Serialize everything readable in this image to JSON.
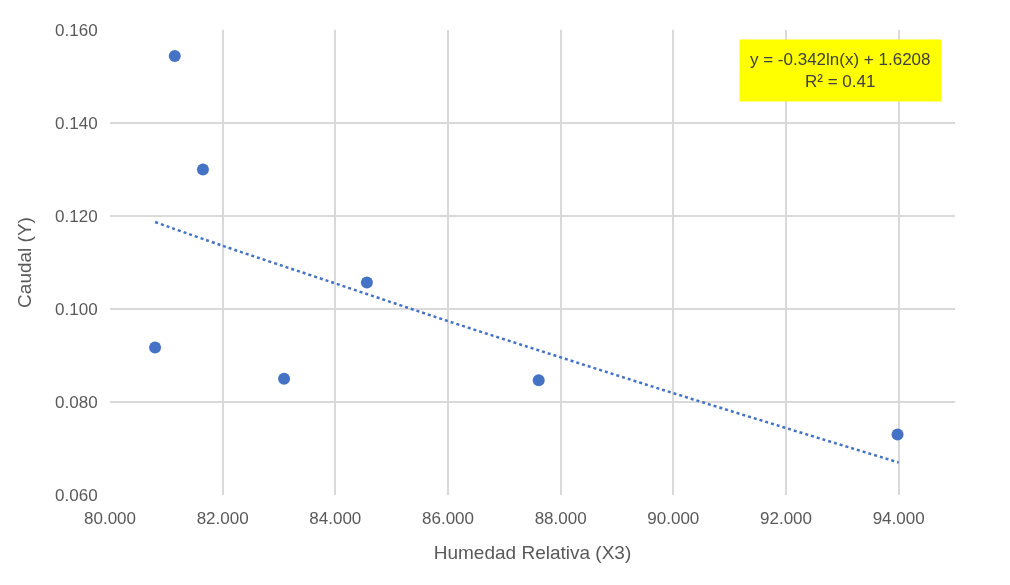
{
  "chart_data": {
    "type": "scatter",
    "xlabel": "Humedad Relativa (X3)",
    "ylabel": "Caudal (Y)",
    "x": [
      80.8,
      81.15,
      81.65,
      83.09,
      84.56,
      87.61,
      93.98
    ],
    "series": [
      {
        "color": "#4472c4",
        "marker": "circle",
        "values": [
          0.0917,
          0.1544,
          0.13,
          0.085,
          0.1057,
          0.0847,
          0.073
        ]
      },
      {
        "type": "line",
        "color": "#4472c4",
        "line_style": "dotted",
        "marker": "none",
        "x": [
          80.8,
          82,
          84,
          86,
          88,
          90,
          92,
          94
        ],
        "values": [
          0.1187,
          0.1136,
          0.1055,
          0.0974,
          0.0896,
          0.0819,
          0.0744,
          0.067
        ]
      }
    ],
    "xlim": [
      80,
      95
    ],
    "ylim": [
      0.06,
      0.16
    ],
    "xticks": [
      {
        "value": 80,
        "label": "80.000"
      },
      {
        "value": 82,
        "label": "82.000"
      },
      {
        "value": 84,
        "label": "84.000"
      },
      {
        "value": 86,
        "label": "86.000"
      },
      {
        "value": 88,
        "label": "88.000"
      },
      {
        "value": 90,
        "label": "90.000"
      },
      {
        "value": 92,
        "label": "92.000"
      },
      {
        "value": 94,
        "label": "94.000"
      }
    ],
    "yticks": [
      {
        "value": 0.06,
        "label": "0.060"
      },
      {
        "value": 0.08,
        "label": "0.080"
      },
      {
        "value": 0.1,
        "label": "0.100"
      },
      {
        "value": 0.12,
        "label": "0.120"
      },
      {
        "value": 0.14,
        "label": "0.140"
      },
      {
        "value": 0.16,
        "label": "0.160"
      }
    ],
    "annotations": [
      "y = -0.342ln(x) + 1.6208\nR² = 0.41"
    ],
    "grid": true,
    "legend": false
  }
}
